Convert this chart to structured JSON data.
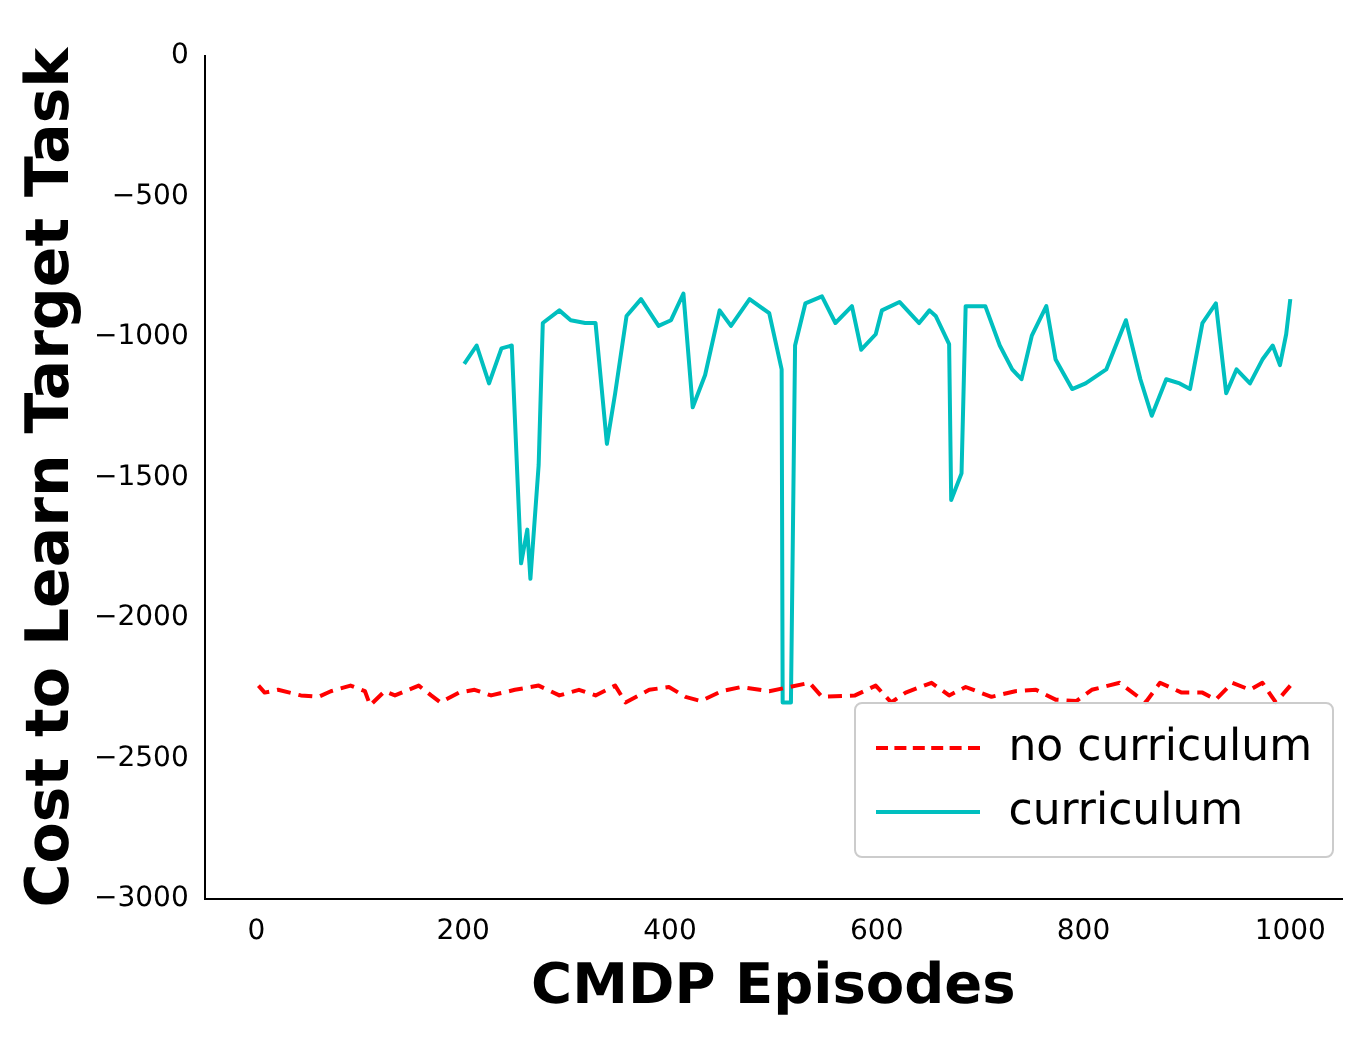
{
  "chart_data": {
    "type": "line",
    "xlabel": "CMDP Episodes",
    "ylabel": "Cost to Learn Target Task",
    "xlim": [
      -50,
      1050
    ],
    "xticks": [
      0,
      200,
      400,
      600,
      800,
      1000
    ],
    "ylim": [
      -3000,
      0
    ],
    "yticks": [
      -3000,
      -2500,
      -2000,
      -1500,
      -1000,
      -500,
      0
    ],
    "grid": false,
    "legend": "bottom right",
    "marker": "none",
    "series": [
      {
        "name": "no curriculum",
        "color": "#ff0000",
        "line_style": "dashed",
        "x": [
          2,
          8,
          21,
          43,
          60,
          72,
          91,
          105,
          110,
          124,
          134,
          157,
          169,
          178,
          196,
          211,
          227,
          250,
          273,
          293,
          312,
          328,
          347,
          357,
          380,
          399,
          415,
          430,
          450,
          469,
          496,
          535,
          547,
          579,
          599,
          614,
          628,
          653,
          670,
          686,
          711,
          734,
          754,
          773,
          793,
          808,
          835,
          860,
          874,
          895,
          915,
          928,
          944,
          961,
          973,
          986,
          1000
        ],
        "values": [
          -2240,
          -2265,
          -2255,
          -2275,
          -2280,
          -2260,
          -2240,
          -2260,
          -2310,
          -2260,
          -2275,
          -2240,
          -2275,
          -2300,
          -2265,
          -2255,
          -2275,
          -2255,
          -2240,
          -2275,
          -2255,
          -2275,
          -2240,
          -2300,
          -2255,
          -2245,
          -2280,
          -2295,
          -2260,
          -2245,
          -2260,
          -2230,
          -2280,
          -2275,
          -2240,
          -2300,
          -2265,
          -2230,
          -2275,
          -2245,
          -2280,
          -2260,
          -2255,
          -2290,
          -2295,
          -2255,
          -2230,
          -2300,
          -2230,
          -2265,
          -2265,
          -2290,
          -2230,
          -2255,
          -2230,
          -2300,
          -2240
        ]
      },
      {
        "name": "curriculum",
        "color": "#00bfbf",
        "line_style": "solid",
        "x": [
          201,
          213,
          225,
          237,
          247,
          256,
          262,
          265,
          273,
          277,
          293,
          304,
          318,
          328,
          339,
          347,
          358,
          372,
          389,
          401,
          413,
          422,
          434,
          448,
          459,
          477,
          496,
          508,
          509,
          517,
          521,
          531,
          547,
          560,
          576,
          585,
          599,
          605,
          622,
          641,
          651,
          657,
          670,
          672,
          682,
          686,
          705,
          719,
          731,
          740,
          750,
          764,
          773,
          789,
          802,
          822,
          841,
          855,
          866,
          880,
          893,
          903,
          915,
          928,
          938,
          948,
          961,
          973,
          983,
          990,
          996,
          1000
        ],
        "values": [
          -1095,
          -1030,
          -1165,
          -1040,
          -1030,
          -1805,
          -1685,
          -1860,
          -1455,
          -950,
          -905,
          -940,
          -950,
          -950,
          -1380,
          -1200,
          -925,
          -865,
          -960,
          -940,
          -845,
          -1250,
          -1135,
          -905,
          -960,
          -865,
          -915,
          -1115,
          -2300,
          -2300,
          -1030,
          -880,
          -855,
          -950,
          -890,
          -1045,
          -990,
          -905,
          -875,
          -950,
          -905,
          -925,
          -1025,
          -1580,
          -1485,
          -890,
          -890,
          -1030,
          -1115,
          -1150,
          -995,
          -890,
          -1080,
          -1185,
          -1165,
          -1115,
          -940,
          -1150,
          -1280,
          -1150,
          -1165,
          -1185,
          -950,
          -880,
          -1200,
          -1115,
          -1165,
          -1080,
          -1030,
          -1100,
          -990,
          -865
        ]
      }
    ]
  }
}
